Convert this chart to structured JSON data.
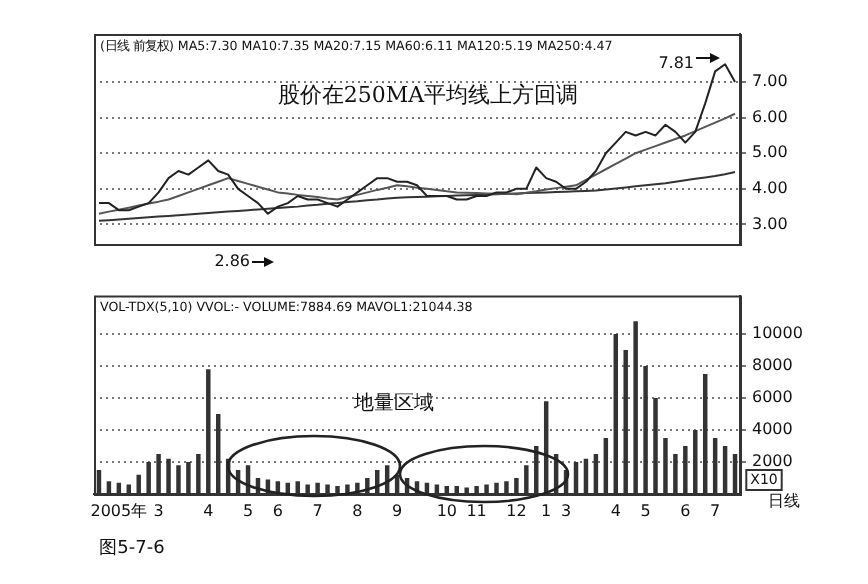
{
  "chart_data": [
    {
      "type": "line",
      "title": "(日线 前复权) MA5:7.30 MA10:7.35 MA20:7.15 MA60:6.11 MA120:5.19 MA250:4.47",
      "categories": [
        null,
        null,
        null,
        null,
        null,
        null,
        null,
        null,
        null,
        null,
        null,
        null,
        null,
        null,
        null,
        null,
        null,
        null,
        null,
        null,
        null,
        null,
        null,
        null,
        null,
        null,
        null,
        null,
        null,
        null,
        null,
        null,
        null,
        null,
        null,
        null,
        null,
        null,
        null,
        null,
        null,
        null,
        null,
        null,
        null,
        null,
        null,
        null,
        null,
        null,
        null,
        null,
        null,
        null,
        null,
        null,
        null,
        null,
        null,
        null,
        null,
        null,
        null,
        null,
        null
      ],
      "series": [
        {
          "color": "#222222",
          "values": [
            3.6,
            3.6,
            3.4,
            3.4,
            3.5,
            3.6,
            3.9,
            4.3,
            4.5,
            4.4,
            4.6,
            4.8,
            4.5,
            4.4,
            4.0,
            3.8,
            3.6,
            3.3,
            3.5,
            3.6,
            3.8,
            3.7,
            3.7,
            3.6,
            3.5,
            3.7,
            3.9,
            4.1,
            4.3,
            4.3,
            4.2,
            4.2,
            4.1,
            3.8,
            3.8,
            3.8,
            3.7,
            3.7,
            3.8,
            3.8,
            3.9,
            3.9,
            4.0,
            4.0,
            4.6,
            4.3,
            4.2,
            4.0,
            4.0,
            4.2,
            4.5,
            5.0,
            5.3,
            5.6,
            5.5,
            5.6,
            5.5,
            5.8,
            5.6,
            5.3,
            5.6,
            6.4,
            7.3,
            7.5,
            7.0
          ]
        },
        {
          "color": "#555555",
          "values": [
            3.3,
            3.36,
            3.41,
            3.47,
            3.53,
            3.59,
            3.64,
            3.7,
            3.8,
            3.9,
            4.0,
            4.1,
            4.2,
            4.3,
            4.22,
            4.14,
            4.06,
            3.98,
            3.9,
            3.87,
            3.83,
            3.8,
            3.77,
            3.73,
            3.7,
            3.77,
            3.83,
            3.9,
            3.97,
            4.03,
            4.1,
            4.07,
            4.03,
            4.0,
            3.97,
            3.93,
            3.9,
            3.89,
            3.88,
            3.87,
            3.86,
            3.86,
            3.85,
            3.89,
            3.93,
            3.98,
            4.02,
            4.06,
            4.1,
            4.25,
            4.4,
            4.55,
            4.7,
            4.85,
            5.0,
            5.1,
            5.2,
            5.3,
            5.4,
            5.5,
            5.62,
            5.74,
            5.86,
            5.98,
            6.11
          ]
        },
        {
          "color": "#333333",
          "values": [
            3.1,
            3.12,
            3.14,
            3.16,
            3.18,
            3.2,
            3.22,
            3.24,
            3.26,
            3.28,
            3.3,
            3.32,
            3.34,
            3.36,
            3.38,
            3.4,
            3.42,
            3.44,
            3.46,
            3.48,
            3.5,
            3.53,
            3.55,
            3.58,
            3.6,
            3.63,
            3.65,
            3.68,
            3.7,
            3.73,
            3.75,
            3.76,
            3.77,
            3.78,
            3.79,
            3.8,
            3.81,
            3.82,
            3.83,
            3.84,
            3.85,
            3.86,
            3.87,
            3.88,
            3.89,
            3.9,
            3.91,
            3.92,
            3.93,
            3.94,
            3.95,
            3.98,
            4.01,
            4.04,
            4.07,
            4.1,
            4.13,
            4.16,
            4.2,
            4.24,
            4.28,
            4.32,
            4.36,
            4.41,
            4.47
          ]
        }
      ],
      "ylim": [
        2.45,
        8.35
      ],
      "yticks": [
        {
          "value": 3,
          "label": "3.00"
        },
        {
          "value": 4,
          "label": "4.00"
        },
        {
          "value": 5,
          "label": "5.00"
        },
        {
          "value": 6,
          "label": "6.00"
        },
        {
          "value": 7,
          "label": "7.00"
        }
      ],
      "tick_labels": "y",
      "grid": "y",
      "annotations": [
        "股价在250MA平均线上方回调",
        "7.81",
        "2.86"
      ]
    },
    {
      "type": "bar",
      "title": "VOL-TDX(5,10) VVOL:- VOLUME:7884.69 MAVOL1:21044.38",
      "categories": [
        null,
        null,
        "2005年",
        null,
        null,
        null,
        "3",
        null,
        null,
        null,
        null,
        "4",
        null,
        null,
        null,
        "5",
        null,
        null,
        "6",
        null,
        null,
        null,
        "7",
        null,
        null,
        null,
        "8",
        null,
        null,
        null,
        "9",
        null,
        null,
        null,
        null,
        "10",
        null,
        null,
        "11",
        null,
        null,
        null,
        "12",
        null,
        null,
        "1",
        null,
        "3",
        null,
        null,
        null,
        null,
        "4",
        null,
        null,
        "5",
        null,
        null,
        null,
        "6",
        null,
        null,
        "7",
        null,
        null
      ],
      "values": [
        1500,
        800,
        700,
        600,
        1200,
        2000,
        2500,
        2200,
        1800,
        2000,
        2500,
        7800,
        5000,
        2200,
        1500,
        1800,
        1000,
        900,
        800,
        700,
        800,
        600,
        700,
        600,
        500,
        600,
        700,
        1000,
        1500,
        1800,
        1200,
        1000,
        800,
        700,
        600,
        500,
        500,
        400,
        500,
        600,
        700,
        800,
        1000,
        1800,
        3000,
        5800,
        2500,
        1500,
        2000,
        2200,
        2500,
        3500,
        10000,
        9000,
        10800,
        8000,
        6000,
        3500,
        2500,
        3000,
        4000,
        7500,
        3500,
        3000,
        2500
      ],
      "color": "#333333",
      "ylim": [
        0,
        12400
      ],
      "yticks": [
        2000,
        4000,
        6000,
        8000,
        10000
      ],
      "grid": "y",
      "annotations": [
        "地量区域",
        "X10",
        "日线",
        "图5-7-6"
      ]
    }
  ]
}
